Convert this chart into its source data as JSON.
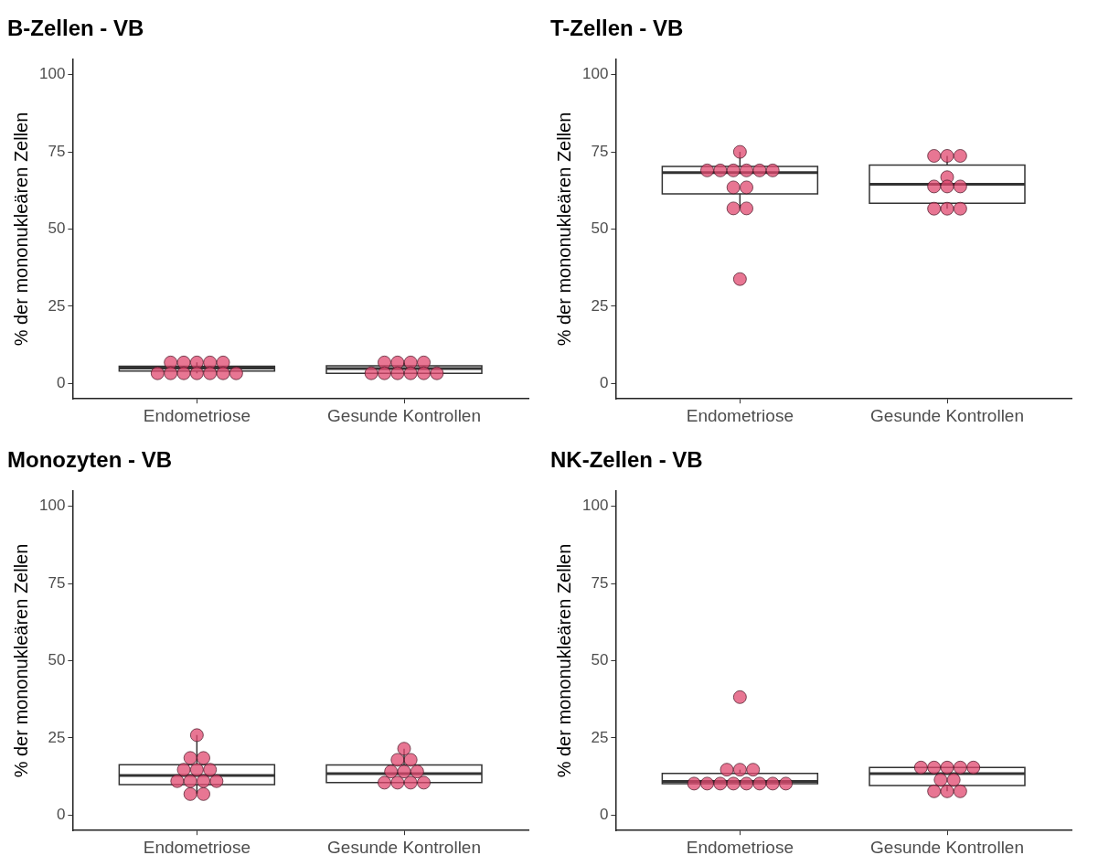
{
  "chart_data": [
    {
      "type": "box",
      "title": "B-Zellen - VB",
      "ylabel": "% der mononukleären Zellen",
      "categories": [
        "Endometriose",
        "Gesunde Kontrollen"
      ],
      "ylim": [
        -5,
        105
      ],
      "yticks": [
        0,
        25,
        50,
        75,
        100
      ],
      "boxes": [
        {
          "low": 3.3,
          "q1": 4.0,
          "median": 5.0,
          "q3": 5.6,
          "high": 6.8
        },
        {
          "low": 3.3,
          "q1": 3.3,
          "median": 4.8,
          "q3": 5.7,
          "high": 6.8
        }
      ],
      "series": [
        {
          "type": "scatter",
          "color": "#e0486f",
          "x": [
            "Endometriose",
            "Endometriose",
            "Endometriose",
            "Endometriose",
            "Endometriose",
            "Endometriose",
            "Endometriose",
            "Endometriose",
            "Endometriose",
            "Endometriose",
            "Endometriose",
            "Endometriose",
            "Gesunde Kontrollen",
            "Gesunde Kontrollen",
            "Gesunde Kontrollen",
            "Gesunde Kontrollen",
            "Gesunde Kontrollen",
            "Gesunde Kontrollen",
            "Gesunde Kontrollen",
            "Gesunde Kontrollen",
            "Gesunde Kontrollen",
            "Gesunde Kontrollen"
          ],
          "values": [
            6.8,
            6.8,
            6.8,
            6.8,
            6.8,
            3.3,
            3.3,
            3.3,
            3.3,
            3.3,
            3.3,
            3.3,
            6.8,
            6.8,
            6.8,
            6.8,
            3.3,
            3.3,
            3.3,
            3.3,
            3.3,
            3.3
          ]
        }
      ]
    },
    {
      "type": "box",
      "title": "T-Zellen - VB",
      "ylabel": "% der mononukleären Zellen",
      "categories": [
        "Endometriose",
        "Gesunde Kontrollen"
      ],
      "ylim": [
        -5,
        105
      ],
      "yticks": [
        0,
        25,
        50,
        75,
        100
      ],
      "boxes": [
        {
          "low": 56.7,
          "q1": 61.4,
          "median": 68.3,
          "q3": 70.3,
          "high": 75
        },
        {
          "low": 56.6,
          "q1": 58.4,
          "median": 64.5,
          "q3": 70.7,
          "high": 73.7
        }
      ],
      "series": [
        {
          "type": "scatter",
          "color": "#e0486f",
          "x": [
            "Endometriose",
            "Endometriose",
            "Endometriose",
            "Endometriose",
            "Endometriose",
            "Endometriose",
            "Endometriose",
            "Endometriose",
            "Endometriose",
            "Endometriose",
            "Endometriose",
            "Endometriose",
            "Gesunde Kontrollen",
            "Gesunde Kontrollen",
            "Gesunde Kontrollen",
            "Gesunde Kontrollen",
            "Gesunde Kontrollen",
            "Gesunde Kontrollen",
            "Gesunde Kontrollen",
            "Gesunde Kontrollen",
            "Gesunde Kontrollen",
            "Gesunde Kontrollen"
          ],
          "values": [
            75,
            69,
            69,
            69,
            69,
            69,
            69,
            63.5,
            63.5,
            56.7,
            56.7,
            33.8,
            73.7,
            73.7,
            73.7,
            66.8,
            63.8,
            63.8,
            63.8,
            56.6,
            56.6,
            56.6
          ]
        }
      ]
    },
    {
      "type": "box",
      "title": "Monozyten - VB",
      "ylabel": "% der mononukleären Zellen",
      "categories": [
        "Endometriose",
        "Gesunde Kontrollen"
      ],
      "ylim": [
        -5,
        105
      ],
      "yticks": [
        0,
        25,
        50,
        75,
        100
      ],
      "boxes": [
        {
          "low": 6.8,
          "q1": 9.9,
          "median": 12.8,
          "q3": 16.3,
          "high": 25.9
        },
        {
          "low": 10.5,
          "q1": 10.5,
          "median": 13.4,
          "q3": 16.2,
          "high": 21.5
        }
      ],
      "series": [
        {
          "type": "scatter",
          "color": "#e0486f",
          "x": [
            "Endometriose",
            "Endometriose",
            "Endometriose",
            "Endometriose",
            "Endometriose",
            "Endometriose",
            "Endometriose",
            "Endometriose",
            "Endometriose",
            "Endometriose",
            "Endometriose",
            "Endometriose",
            "Gesunde Kontrollen",
            "Gesunde Kontrollen",
            "Gesunde Kontrollen",
            "Gesunde Kontrollen",
            "Gesunde Kontrollen",
            "Gesunde Kontrollen",
            "Gesunde Kontrollen",
            "Gesunde Kontrollen",
            "Gesunde Kontrollen",
            "Gesunde Kontrollen"
          ],
          "values": [
            25.9,
            18.5,
            18.5,
            14.7,
            14.7,
            14.7,
            11,
            11,
            11,
            11,
            6.8,
            6.8,
            21.5,
            17.9,
            17.9,
            14.1,
            14.1,
            14.1,
            10.5,
            10.5,
            10.5,
            10.5
          ]
        }
      ]
    },
    {
      "type": "box",
      "title": "NK-Zellen - VB",
      "ylabel": "% der mononukleären Zellen",
      "categories": [
        "Endometriose",
        "Gesunde Kontrollen"
      ],
      "ylim": [
        -5,
        105
      ],
      "yticks": [
        0,
        25,
        50,
        75,
        100
      ],
      "boxes": [
        {
          "low": 10.2,
          "q1": 10.2,
          "median": 10.9,
          "q3": 13.5,
          "high": 14.7
        },
        {
          "low": 7.7,
          "q1": 9.6,
          "median": 13.4,
          "q3": 15.4,
          "high": 15.4
        }
      ],
      "series": [
        {
          "type": "scatter",
          "color": "#e0486f",
          "x": [
            "Endometriose",
            "Endometriose",
            "Endometriose",
            "Endometriose",
            "Endometriose",
            "Endometriose",
            "Endometriose",
            "Endometriose",
            "Endometriose",
            "Endometriose",
            "Endometriose",
            "Endometriose",
            "Gesunde Kontrollen",
            "Gesunde Kontrollen",
            "Gesunde Kontrollen",
            "Gesunde Kontrollen",
            "Gesunde Kontrollen",
            "Gesunde Kontrollen",
            "Gesunde Kontrollen",
            "Gesunde Kontrollen",
            "Gesunde Kontrollen",
            "Gesunde Kontrollen"
          ],
          "values": [
            38.2,
            14.7,
            14.7,
            14.7,
            10.2,
            10.2,
            10.2,
            10.2,
            10.2,
            10.2,
            10.2,
            10.2,
            15.4,
            15.4,
            15.4,
            15.4,
            15.4,
            11.4,
            11.4,
            7.7,
            7.7,
            7.7
          ]
        }
      ]
    }
  ]
}
